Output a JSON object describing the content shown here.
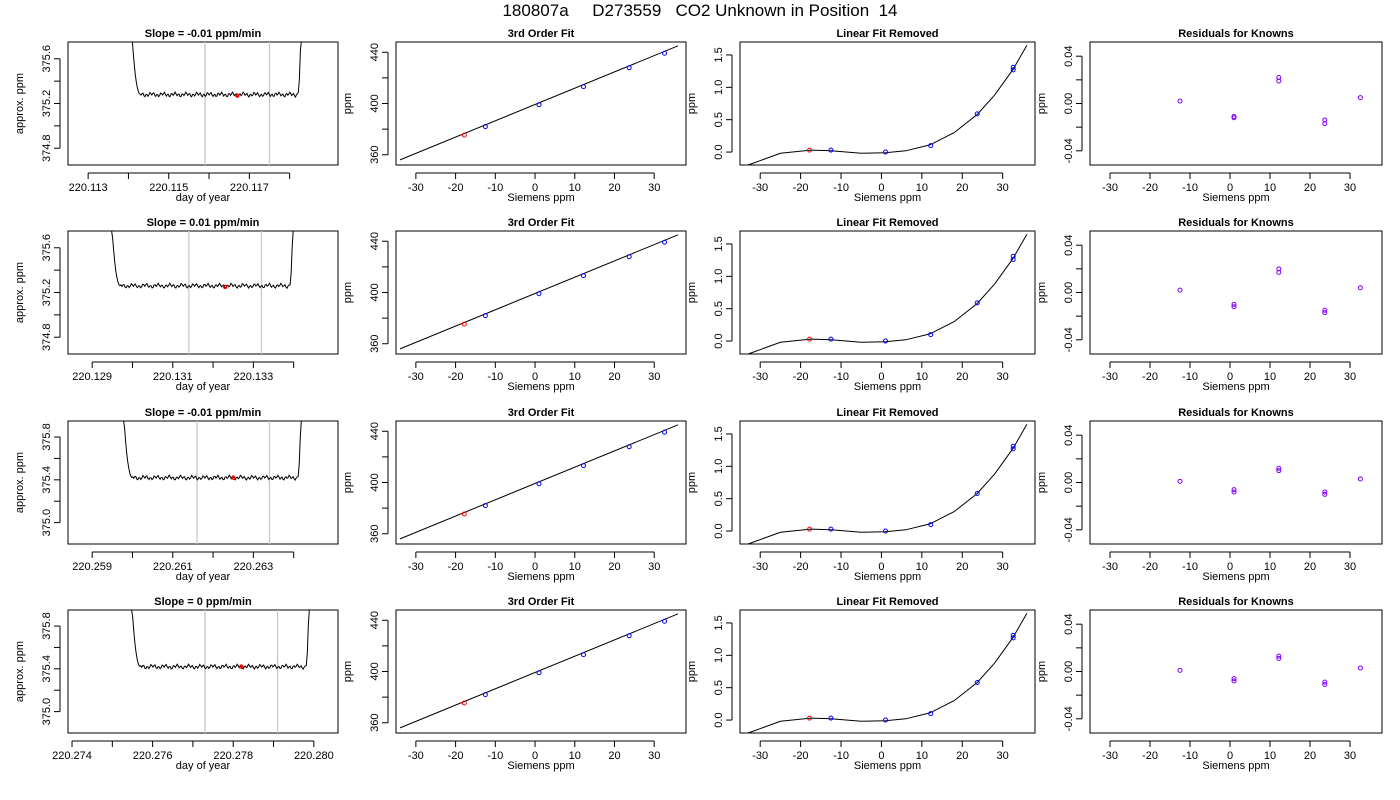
{
  "figure": {
    "title": "180807a     D273559   CO2 Unknown in Position  14"
  },
  "colors": {
    "fit_line": "#000000",
    "cursor": "#c8c8c8",
    "known_point": "#0000ff",
    "unknown_point": "#ff0000",
    "residual_point": "#8000ff"
  },
  "chart_data": [
    {
      "type": "line",
      "panel": "time-series",
      "row": 1,
      "title": "Slope =  -0.01  ppm/min",
      "xlabel": "day of year",
      "ylabel": "approx. ppm",
      "xlim": [
        220.1125,
        220.1192
      ],
      "ylim": [
        374.65,
        375.75
      ],
      "xticks": [
        220.113,
        220.114,
        220.115,
        220.116,
        220.117,
        220.118
      ],
      "xtick_labels": [
        "220.113",
        "",
        "220.115",
        "",
        "220.117",
        ""
      ],
      "yticks": [
        374.8,
        375.0,
        375.2,
        375.4,
        375.6
      ],
      "ytick_labels": [
        "374.8",
        "",
        "375.2",
        "",
        "375.6"
      ],
      "cursors": [
        220.1159,
        220.1175
      ],
      "flat_level": 375.28,
      "plateau": [
        220.1143,
        220.1182
      ],
      "unknown_point": {
        "x": 220.1167,
        "y": 375.27
      }
    },
    {
      "type": "scatter",
      "panel": "cubic-fit",
      "row": 1,
      "title": "3rd Order Fit",
      "xlabel": "Siemens ppm",
      "ylabel": "ppm",
      "xlim": [
        -35,
        38
      ],
      "ylim": [
        352,
        448
      ],
      "xticks": [
        -30,
        -20,
        -10,
        0,
        10,
        20,
        30
      ],
      "yticks": [
        360,
        380,
        400,
        420,
        440
      ],
      "ytick_labels": [
        "360",
        "",
        "400",
        "",
        "440"
      ],
      "line": {
        "x": [
          -34,
          36
        ],
        "y": [
          356,
          445
        ]
      },
      "known_x": [
        -12.5,
        1.0,
        12.2,
        23.7,
        32.6
      ],
      "known_y": [
        382.0,
        399.0,
        413.2,
        427.9,
        439.2
      ],
      "unknown": {
        "x": -17.8,
        "y": 375.3
      }
    },
    {
      "type": "scatter",
      "panel": "linear-removed",
      "row": 1,
      "title": "Linear Fit Removed",
      "xlabel": "Siemens ppm",
      "ylabel": "ppm",
      "xlim": [
        -35,
        38
      ],
      "ylim": [
        -0.2,
        1.7
      ],
      "xticks": [
        -30,
        -20,
        -10,
        0,
        10,
        20,
        30
      ],
      "yticks": [
        0.0,
        0.5,
        1.0,
        1.5
      ],
      "ytick_labels": [
        "0.0",
        "0.5",
        "1.0",
        "1.5"
      ],
      "curve": {
        "x": [
          -33,
          -25,
          -17.5,
          -12.5,
          -5,
          1,
          6,
          12,
          18,
          23.7,
          28,
          32.6,
          36
        ],
        "y": [
          -0.2,
          -0.02,
          0.03,
          0.02,
          -0.02,
          -0.01,
          0.02,
          0.11,
          0.3,
          0.58,
          0.88,
          1.28,
          1.65
        ]
      },
      "known_x": [
        -12.5,
        1.0,
        12.2,
        23.7,
        32.6,
        32.6
      ],
      "known_y": [
        0.03,
        0.0,
        0.1,
        0.59,
        1.27,
        1.31
      ],
      "unknown": {
        "x": -17.8,
        "y": 0.03
      }
    },
    {
      "type": "scatter",
      "panel": "residuals",
      "row": 1,
      "title": "Residuals for Knowns",
      "xlabel": "Siemens ppm",
      "ylabel": "ppm",
      "xlim": [
        -35,
        38
      ],
      "ylim": [
        -0.052,
        0.052
      ],
      "xticks": [
        -30,
        -20,
        -10,
        0,
        10,
        20,
        30
      ],
      "yticks": [
        -0.04,
        -0.02,
        0.0,
        0.02,
        0.04
      ],
      "ytick_labels": [
        "-0.04",
        "",
        "0.00",
        "",
        "0.04"
      ],
      "x": [
        -12.5,
        1.0,
        1.0,
        12.2,
        12.2,
        23.7,
        23.7,
        32.6
      ],
      "y": [
        0.002,
        -0.011,
        -0.012,
        0.022,
        0.019,
        -0.014,
        -0.017,
        0.005
      ]
    },
    {
      "type": "line",
      "panel": "time-series",
      "row": 2,
      "title": "Slope =  0.01  ppm/min",
      "xlabel": "day of year",
      "ylabel": "approx. ppm",
      "xlim": [
        220.1284,
        220.1351
      ],
      "ylim": [
        374.65,
        375.75
      ],
      "xticks": [
        220.129,
        220.13,
        220.131,
        220.132,
        220.133,
        220.134
      ],
      "xtick_labels": [
        "220.129",
        "",
        "220.131",
        "",
        "220.133",
        ""
      ],
      "yticks": [
        374.8,
        375.0,
        375.2,
        375.4,
        375.6
      ],
      "ytick_labels": [
        "374.8",
        "",
        "375.2",
        "",
        "375.6"
      ],
      "cursors": [
        220.1314,
        220.1332
      ],
      "flat_level": 375.26,
      "plateau": [
        220.1297,
        220.1339
      ],
      "unknown_point": {
        "x": 220.1323,
        "y": 375.25
      }
    },
    {
      "type": "scatter",
      "panel": "cubic-fit",
      "row": 2,
      "title": "3rd Order Fit",
      "xlabel": "Siemens ppm",
      "ylabel": "ppm",
      "xlim": [
        -35,
        38
      ],
      "ylim": [
        352,
        448
      ],
      "xticks": [
        -30,
        -20,
        -10,
        0,
        10,
        20,
        30
      ],
      "yticks": [
        360,
        380,
        400,
        420,
        440
      ],
      "ytick_labels": [
        "360",
        "",
        "400",
        "",
        "440"
      ],
      "line": {
        "x": [
          -34,
          36
        ],
        "y": [
          356,
          445
        ]
      },
      "known_x": [
        -12.5,
        1.0,
        12.2,
        23.7,
        32.6
      ],
      "known_y": [
        382.0,
        399.0,
        413.2,
        427.9,
        439.2
      ],
      "unknown": {
        "x": -17.8,
        "y": 375.3
      }
    },
    {
      "type": "scatter",
      "panel": "linear-removed",
      "row": 2,
      "title": "Linear Fit Removed",
      "xlabel": "Siemens ppm",
      "ylabel": "ppm",
      "xlim": [
        -35,
        38
      ],
      "ylim": [
        -0.2,
        1.7
      ],
      "xticks": [
        -30,
        -20,
        -10,
        0,
        10,
        20,
        30
      ],
      "yticks": [
        0.0,
        0.5,
        1.0,
        1.5
      ],
      "ytick_labels": [
        "0.0",
        "0.5",
        "1.0",
        "1.5"
      ],
      "curve": {
        "x": [
          -33,
          -25,
          -17.5,
          -12.5,
          -5,
          1,
          6,
          12,
          18,
          23.7,
          28,
          32.6,
          36
        ],
        "y": [
          -0.2,
          -0.02,
          0.03,
          0.02,
          -0.02,
          -0.01,
          0.02,
          0.11,
          0.3,
          0.58,
          0.88,
          1.28,
          1.65
        ]
      },
      "known_x": [
        -12.5,
        1.0,
        12.2,
        23.7,
        32.6,
        32.6
      ],
      "known_y": [
        0.03,
        0.0,
        0.1,
        0.59,
        1.26,
        1.31
      ],
      "unknown": {
        "x": -17.8,
        "y": 0.03
      }
    },
    {
      "type": "scatter",
      "panel": "residuals",
      "row": 2,
      "title": "Residuals for Knowns",
      "xlabel": "Siemens ppm",
      "ylabel": "ppm",
      "xlim": [
        -35,
        38
      ],
      "ylim": [
        -0.052,
        0.052
      ],
      "xticks": [
        -30,
        -20,
        -10,
        0,
        10,
        20,
        30
      ],
      "yticks": [
        -0.04,
        -0.02,
        0.0,
        0.02,
        0.04
      ],
      "ytick_labels": [
        "-0.04",
        "",
        "0.00",
        "",
        "0.04"
      ],
      "x": [
        -12.5,
        1.0,
        1.0,
        12.2,
        12.2,
        23.7,
        23.7,
        32.6
      ],
      "y": [
        0.002,
        -0.01,
        -0.012,
        0.02,
        0.017,
        -0.015,
        -0.017,
        0.004
      ]
    },
    {
      "type": "line",
      "panel": "time-series",
      "row": 3,
      "title": "Slope =  -0.01  ppm/min",
      "xlabel": "day of year",
      "ylabel": "approx. ppm",
      "xlim": [
        220.2584,
        220.2651
      ],
      "ylim": [
        374.8,
        375.95
      ],
      "xticks": [
        220.259,
        220.26,
        220.261,
        220.262,
        220.263,
        220.264
      ],
      "xtick_labels": [
        "220.259",
        "",
        "220.261",
        "",
        "220.263",
        ""
      ],
      "yticks": [
        375.0,
        375.2,
        375.4,
        375.6,
        375.8
      ],
      "ytick_labels": [
        "375.0",
        "",
        "375.4",
        "",
        "375.8"
      ],
      "cursors": [
        220.2616,
        220.2634
      ],
      "flat_level": 375.42,
      "plateau": [
        220.26,
        220.2641
      ],
      "unknown_point": {
        "x": 220.2625,
        "y": 375.42
      }
    },
    {
      "type": "scatter",
      "panel": "cubic-fit",
      "row": 3,
      "title": "3rd Order Fit",
      "xlabel": "Siemens ppm",
      "ylabel": "ppm",
      "xlim": [
        -35,
        38
      ],
      "ylim": [
        352,
        448
      ],
      "xticks": [
        -30,
        -20,
        -10,
        0,
        10,
        20,
        30
      ],
      "yticks": [
        360,
        380,
        400,
        420,
        440
      ],
      "ytick_labels": [
        "360",
        "",
        "400",
        "",
        "440"
      ],
      "line": {
        "x": [
          -34,
          36
        ],
        "y": [
          356,
          445
        ]
      },
      "known_x": [
        -12.5,
        1.0,
        12.2,
        23.7,
        32.6
      ],
      "known_y": [
        382.0,
        399.0,
        413.2,
        427.9,
        439.2
      ],
      "unknown": {
        "x": -17.8,
        "y": 375.4
      }
    },
    {
      "type": "scatter",
      "panel": "linear-removed",
      "row": 3,
      "title": "Linear Fit Removed",
      "xlabel": "Siemens ppm",
      "ylabel": "ppm",
      "xlim": [
        -35,
        38
      ],
      "ylim": [
        -0.2,
        1.7
      ],
      "xticks": [
        -30,
        -20,
        -10,
        0,
        10,
        20,
        30
      ],
      "yticks": [
        0.0,
        0.5,
        1.0,
        1.5
      ],
      "ytick_labels": [
        "0.0",
        "0.5",
        "1.0",
        "1.5"
      ],
      "curve": {
        "x": [
          -33,
          -25,
          -17.5,
          -12.5,
          -5,
          1,
          6,
          12,
          18,
          23.7,
          28,
          32.6,
          36
        ],
        "y": [
          -0.2,
          -0.02,
          0.03,
          0.02,
          -0.02,
          -0.01,
          0.02,
          0.11,
          0.3,
          0.58,
          0.88,
          1.28,
          1.65
        ]
      },
      "known_x": [
        -12.5,
        1.0,
        12.2,
        23.7,
        32.6,
        32.6
      ],
      "known_y": [
        0.03,
        0.0,
        0.1,
        0.58,
        1.27,
        1.31
      ],
      "unknown": {
        "x": -17.8,
        "y": 0.03
      }
    },
    {
      "type": "scatter",
      "panel": "residuals",
      "row": 3,
      "title": "Residuals for Knowns",
      "xlabel": "Siemens ppm",
      "ylabel": "ppm",
      "xlim": [
        -35,
        38
      ],
      "ylim": [
        -0.052,
        0.052
      ],
      "xticks": [
        -30,
        -20,
        -10,
        0,
        10,
        20,
        30
      ],
      "yticks": [
        -0.04,
        -0.02,
        0.0,
        0.02,
        0.04
      ],
      "ytick_labels": [
        "-0.04",
        "",
        "0.00",
        "",
        "0.04"
      ],
      "x": [
        -12.5,
        1.0,
        1.0,
        12.2,
        12.2,
        23.7,
        23.7,
        32.6
      ],
      "y": [
        0.001,
        -0.006,
        -0.008,
        0.012,
        0.01,
        -0.008,
        -0.01,
        0.003
      ]
    },
    {
      "type": "line",
      "panel": "time-series",
      "row": 4,
      "title": "Slope =  0  ppm/min",
      "xlabel": "day of year",
      "ylabel": "approx. ppm",
      "xlim": [
        220.2739,
        220.2806
      ],
      "ylim": [
        374.8,
        375.95
      ],
      "xticks": [
        220.274,
        220.275,
        220.276,
        220.277,
        220.278,
        220.279,
        220.28
      ],
      "xtick_labels": [
        "220.274",
        "",
        "220.276",
        "",
        "220.278",
        "",
        "220.280"
      ],
      "yticks": [
        375.0,
        375.2,
        375.4,
        375.6,
        375.8
      ],
      "ytick_labels": [
        "375.0",
        "",
        "375.4",
        "",
        "375.8"
      ],
      "cursors": [
        220.2773,
        220.2791
      ],
      "flat_level": 375.42,
      "plateau": [
        220.2757,
        220.2798
      ],
      "unknown_point": {
        "x": 220.2782,
        "y": 375.42
      }
    },
    {
      "type": "scatter",
      "panel": "cubic-fit",
      "row": 4,
      "title": "3rd Order Fit",
      "xlabel": "Siemens ppm",
      "ylabel": "ppm",
      "xlim": [
        -35,
        38
      ],
      "ylim": [
        352,
        448
      ],
      "xticks": [
        -30,
        -20,
        -10,
        0,
        10,
        20,
        30
      ],
      "yticks": [
        360,
        380,
        400,
        420,
        440
      ],
      "ytick_labels": [
        "360",
        "",
        "400",
        "",
        "440"
      ],
      "line": {
        "x": [
          -34,
          36
        ],
        "y": [
          356,
          445
        ]
      },
      "known_x": [
        -12.5,
        1.0,
        12.2,
        23.7,
        32.6
      ],
      "known_y": [
        382.0,
        399.0,
        413.2,
        427.9,
        439.2
      ],
      "unknown": {
        "x": -17.8,
        "y": 375.4
      }
    },
    {
      "type": "scatter",
      "panel": "linear-removed",
      "row": 4,
      "title": "Linear Fit Removed",
      "xlabel": "Siemens ppm",
      "ylabel": "ppm",
      "xlim": [
        -35,
        38
      ],
      "ylim": [
        -0.2,
        1.7
      ],
      "xticks": [
        -30,
        -20,
        -10,
        0,
        10,
        20,
        30
      ],
      "yticks": [
        0.0,
        0.5,
        1.0,
        1.5
      ],
      "ytick_labels": [
        "0.0",
        "0.5",
        "1.0",
        "1.5"
      ],
      "curve": {
        "x": [
          -33,
          -25,
          -17.5,
          -12.5,
          -5,
          1,
          6,
          12,
          18,
          23.7,
          28,
          32.6,
          36
        ],
        "y": [
          -0.2,
          -0.02,
          0.03,
          0.02,
          -0.02,
          -0.01,
          0.02,
          0.11,
          0.3,
          0.58,
          0.88,
          1.28,
          1.65
        ]
      },
      "known_x": [
        -12.5,
        1.0,
        12.2,
        23.7,
        32.6,
        32.6
      ],
      "known_y": [
        0.03,
        0.0,
        0.1,
        0.58,
        1.27,
        1.31
      ],
      "unknown": {
        "x": -17.8,
        "y": 0.03
      }
    },
    {
      "type": "scatter",
      "panel": "residuals",
      "row": 4,
      "title": "Residuals for Knowns",
      "xlabel": "Siemens ppm",
      "ylabel": "ppm",
      "xlim": [
        -35,
        38
      ],
      "ylim": [
        -0.052,
        0.052
      ],
      "xticks": [
        -30,
        -20,
        -10,
        0,
        10,
        20,
        30
      ],
      "yticks": [
        -0.04,
        -0.02,
        0.0,
        0.02,
        0.04
      ],
      "ytick_labels": [
        "-0.04",
        "",
        "0.00",
        "",
        "0.04"
      ],
      "x": [
        -12.5,
        1.0,
        1.0,
        12.2,
        12.2,
        23.7,
        23.7,
        32.6
      ],
      "y": [
        0.001,
        -0.006,
        -0.008,
        0.013,
        0.011,
        -0.009,
        -0.011,
        0.003
      ]
    }
  ]
}
